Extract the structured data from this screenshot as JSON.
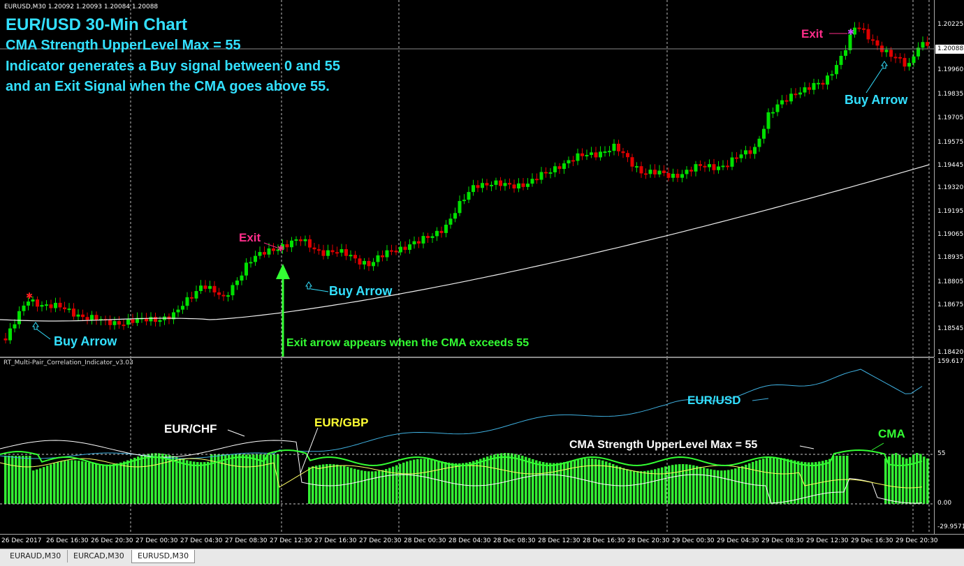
{
  "window": {
    "symbol_header": "EURUSD,M30  1.20092 1.20093 1.20084 1.20088"
  },
  "annotations": {
    "title": "EUR/USD 30-Min Chart",
    "line1": "CMA Strength UpperLevel Max = 55",
    "line2": "Indicator generates a Buy signal between 0 and 55",
    "line3": "and an Exit Signal when the CMA goes above 55.",
    "exit_label": "Exit",
    "buy_arrow_label": "Buy Arrow",
    "exit_explain": "Exit arrow appears when the CMA exceeds 55",
    "eurchf": "EUR/CHF",
    "eurgbp": "EUR/GBP",
    "eurusd": "EUR/USD",
    "cma": "CMA",
    "upper_level": "CMA Strength UpperLevel Max = 55"
  },
  "price_axis": [
    "1.20225",
    "1.19960",
    "1.19835",
    "1.19705",
    "1.19575",
    "1.19445",
    "1.19320",
    "1.19195",
    "1.19065",
    "1.18935",
    "1.18805",
    "1.18675",
    "1.18545",
    "1.18420"
  ],
  "current_price": "1.20088",
  "indicator": {
    "name": "RT_Multi-Pair_Correlation_Indicator_v3.03",
    "axis": [
      "159.6172",
      "55",
      "0.00",
      "-29.9571"
    ]
  },
  "time_axis": [
    "26 Dec 2017",
    "26 Dec 16:30",
    "26 Dec 20:30",
    "27 Dec 00:30",
    "27 Dec 04:30",
    "27 Dec 08:30",
    "27 Dec 12:30",
    "27 Dec 16:30",
    "27 Dec 20:30",
    "28 Dec 00:30",
    "28 Dec 04:30",
    "28 Dec 08:30",
    "28 Dec 12:30",
    "28 Dec 16:30",
    "28 Dec 20:30",
    "29 Dec 00:30",
    "29 Dec 04:30",
    "29 Dec 08:30",
    "29 Dec 12:30",
    "29 Dec 16:30",
    "29 Dec 20:30"
  ],
  "tabs": [
    "EURAUD,M30",
    "EURCAD,M30",
    "EURUSD,M30"
  ],
  "active_tab": "EURUSD,M30",
  "colors": {
    "bull": "#00e000",
    "bear": "#e00000",
    "cyan": "#33e0ff",
    "exit": "#ff2d8a",
    "green_text": "#33ff33",
    "eurgbp": "#ffff33",
    "eurusd_line": "#3fb0e0"
  }
}
